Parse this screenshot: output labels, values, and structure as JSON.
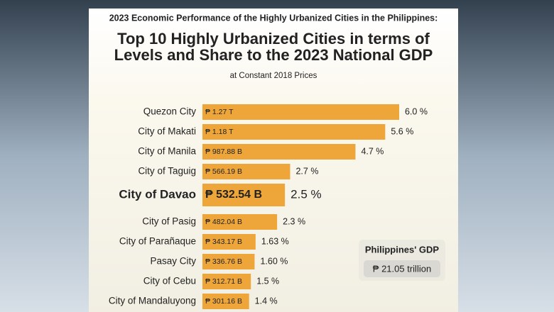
{
  "chart_data": {
    "type": "bar",
    "orientation": "horizontal",
    "kicker": "2023 Economic Performance of the Highly Urbanized Cities in the Philippines:",
    "title": [
      "Top 10 Highly Urbanized Cities in terms of",
      "Levels and Share to the 2023 National GDP"
    ],
    "subtitle": "at Constant 2018 Prices",
    "categories": [
      "Quezon City",
      "City of Makati",
      "City of Manila",
      "City of Taguig",
      "City of Davao",
      "City of Pasig",
      "City of Parañaque",
      "Pasay City",
      "City of Cebu",
      "City of Mandaluyong"
    ],
    "values": [
      1270,
      1180,
      987.88,
      566.19,
      532.54,
      482.04,
      343.17,
      336.76,
      312.71,
      301.16
    ],
    "value_labels": [
      "₱ 1.27 T",
      "₱ 1.18 T",
      "₱ 987.88 B",
      "₱ 566.19 B",
      "₱ 532.54 B",
      "₱ 482.04 B",
      "₱ 343.17 B",
      "₱ 336.76 B",
      "₱ 312.71 B",
      "₱ 301.16 B"
    ],
    "shares": [
      6.0,
      5.6,
      4.7,
      2.7,
      2.5,
      2.3,
      1.63,
      1.6,
      1.5,
      1.4
    ],
    "share_labels": [
      "6.0 %",
      "5.6 %",
      "4.7 %",
      "2.7 %",
      "2.5 %",
      "2.3 %",
      "1.63 %",
      "1.60 %",
      "1.5 %",
      "1.4 %"
    ],
    "highlight": "City of Davao",
    "color": "#eea63a",
    "annotation": {
      "title": "Philippines' GDP",
      "value": "₱ 21.05 trillion"
    }
  }
}
